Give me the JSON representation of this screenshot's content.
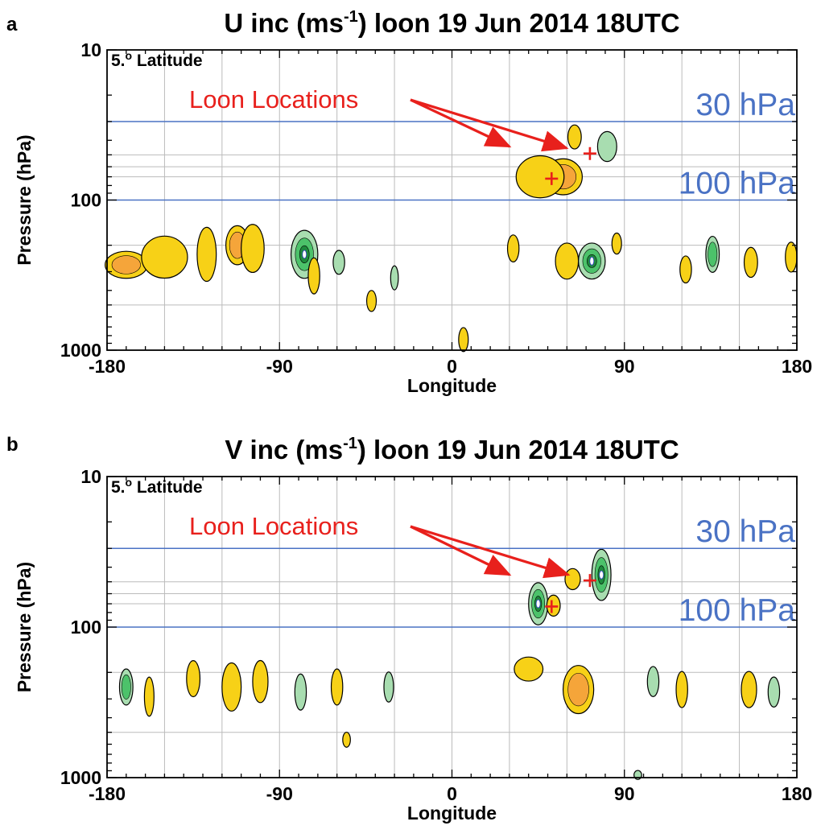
{
  "colors": {
    "ref_line": "#4a72c4",
    "annotation": "#e8201c",
    "positive_fill": "#f7d117",
    "positive_core": "#f5a53a",
    "negative_fill": "#a8ddb0",
    "negative_mid": "#4cc26a",
    "negative_core": "#1e8a3c",
    "negative_peak": "#2d3fc0",
    "grid": "#bbbbbb"
  },
  "chart_data": [
    {
      "panel_label": "a",
      "type": "contour",
      "title_main": "U inc (ms",
      "title_sup": "-1",
      "title_rest": ") loon  19 Jun 2014 18UTC",
      "xlabel": "Longitude",
      "ylabel": "Pressure (hPa)",
      "xlim": [
        -180,
        180
      ],
      "ylim": [
        1000,
        10
      ],
      "yscale": "log",
      "x_ticks": [
        "-180",
        "-90",
        "0",
        "90",
        "180"
      ],
      "x_tick_values": [
        -180,
        -90,
        0,
        90,
        180
      ],
      "y_ticks": [
        "10",
        "100",
        "1000"
      ],
      "y_tick_values": [
        10,
        100,
        1000
      ],
      "latitude_label": "5.",
      "latitude_sup": "o",
      "latitude_rest": " Latitude",
      "reference_lines": [
        {
          "label": "30 hPa",
          "pressure": 30
        },
        {
          "label": "100 hPa",
          "pressure": 100
        }
      ],
      "annotation": {
        "text": "Loon Locations"
      },
      "loon_locations": [
        {
          "lon": 52,
          "p": 72
        },
        {
          "lon": 72,
          "p": 49
        }
      ],
      "blobs": [
        {
          "lon": 46,
          "p": 72,
          "sign": -1,
          "level": 3,
          "w": 12,
          "h": 0.12
        },
        {
          "lon": 58,
          "p": 70,
          "sign": 1,
          "level": 2,
          "w": 20,
          "h": 0.12
        },
        {
          "lon": 46,
          "p": 70,
          "sign": 1,
          "level": 1,
          "w": 25,
          "h": 0.14
        },
        {
          "lon": 64,
          "p": 38,
          "sign": 1,
          "level": 1,
          "w": 7,
          "h": 0.08
        },
        {
          "lon": 81,
          "p": 44,
          "sign": -1,
          "level": 1,
          "w": 10,
          "h": 0.1
        },
        {
          "lon": -170,
          "p": 270,
          "sign": 1,
          "level": 2,
          "w": 22,
          "h": 0.09
        },
        {
          "lon": -150,
          "p": 240,
          "sign": 1,
          "level": 1,
          "w": 24,
          "h": 0.14
        },
        {
          "lon": -128,
          "p": 230,
          "sign": 1,
          "level": 1,
          "w": 10,
          "h": 0.18
        },
        {
          "lon": -112,
          "p": 200,
          "sign": 1,
          "level": 2,
          "w": 12,
          "h": 0.13
        },
        {
          "lon": -104,
          "p": 210,
          "sign": 1,
          "level": 1,
          "w": 12,
          "h": 0.16
        },
        {
          "lon": -77,
          "p": 230,
          "sign": -1,
          "level": 3,
          "w": 14,
          "h": 0.16
        },
        {
          "lon": -72,
          "p": 320,
          "sign": 1,
          "level": 1,
          "w": 6,
          "h": 0.12
        },
        {
          "lon": -59,
          "p": 260,
          "sign": -1,
          "level": 1,
          "w": 6,
          "h": 0.08
        },
        {
          "lon": -42,
          "p": 470,
          "sign": 1,
          "level": 1,
          "w": 5,
          "h": 0.07
        },
        {
          "lon": -30,
          "p": 330,
          "sign": -1,
          "level": 1,
          "w": 4,
          "h": 0.08
        },
        {
          "lon": 6,
          "p": 850,
          "sign": 1,
          "level": 1,
          "w": 5,
          "h": 0.08
        },
        {
          "lon": 32,
          "p": 210,
          "sign": 1,
          "level": 1,
          "w": 6,
          "h": 0.09
        },
        {
          "lon": 60,
          "p": 255,
          "sign": 1,
          "level": 1,
          "w": 12,
          "h": 0.12
        },
        {
          "lon": 73,
          "p": 255,
          "sign": -1,
          "level": 3,
          "w": 14,
          "h": 0.12
        },
        {
          "lon": 86,
          "p": 195,
          "sign": 1,
          "level": 1,
          "w": 5,
          "h": 0.07
        },
        {
          "lon": 122,
          "p": 290,
          "sign": 1,
          "level": 1,
          "w": 6,
          "h": 0.09
        },
        {
          "lon": 136,
          "p": 230,
          "sign": -1,
          "level": 2,
          "w": 7,
          "h": 0.12
        },
        {
          "lon": 156,
          "p": 260,
          "sign": 1,
          "level": 1,
          "w": 7,
          "h": 0.1
        },
        {
          "lon": 177,
          "p": 240,
          "sign": 1,
          "level": 1,
          "w": 6,
          "h": 0.1
        }
      ]
    },
    {
      "panel_label": "b",
      "type": "contour",
      "title_main": "V inc (ms",
      "title_sup": "-1",
      "title_rest": ") loon  19 Jun 2014 18UTC",
      "xlabel": "Longitude",
      "ylabel": "Pressure (hPa)",
      "xlim": [
        -180,
        180
      ],
      "ylim": [
        1000,
        10
      ],
      "yscale": "log",
      "x_ticks": [
        "-180",
        "-90",
        "0",
        "90",
        "180"
      ],
      "x_tick_values": [
        -180,
        -90,
        0,
        90,
        180
      ],
      "y_ticks": [
        "10",
        "100",
        "1000"
      ],
      "y_tick_values": [
        10,
        100,
        1000
      ],
      "latitude_label": "5.",
      "latitude_sup": "o",
      "latitude_rest": " Latitude",
      "reference_lines": [
        {
          "label": "30 hPa",
          "pressure": 30
        },
        {
          "label": "100 hPa",
          "pressure": 100
        }
      ],
      "annotation": {
        "text": "Loon Locations"
      },
      "loon_locations": [
        {
          "lon": 52,
          "p": 73
        },
        {
          "lon": 72,
          "p": 49
        }
      ],
      "blobs": [
        {
          "lon": 45,
          "p": 70,
          "sign": -1,
          "level": 3,
          "w": 10,
          "h": 0.14
        },
        {
          "lon": 53,
          "p": 72,
          "sign": 1,
          "level": 1,
          "w": 7,
          "h": 0.07
        },
        {
          "lon": 63,
          "p": 48,
          "sign": 1,
          "level": 1,
          "w": 8,
          "h": 0.07
        },
        {
          "lon": 78,
          "p": 45,
          "sign": -1,
          "level": 3,
          "w": 10,
          "h": 0.17
        },
        {
          "lon": -170,
          "p": 250,
          "sign": -1,
          "level": 2,
          "w": 7,
          "h": 0.12
        },
        {
          "lon": -158,
          "p": 290,
          "sign": 1,
          "level": 1,
          "w": 5,
          "h": 0.13
        },
        {
          "lon": -135,
          "p": 220,
          "sign": 1,
          "level": 1,
          "w": 7,
          "h": 0.12
        },
        {
          "lon": -115,
          "p": 250,
          "sign": 1,
          "level": 1,
          "w": 10,
          "h": 0.16
        },
        {
          "lon": -100,
          "p": 230,
          "sign": 1,
          "level": 1,
          "w": 8,
          "h": 0.14
        },
        {
          "lon": -79,
          "p": 270,
          "sign": -1,
          "level": 1,
          "w": 6,
          "h": 0.12
        },
        {
          "lon": -60,
          "p": 250,
          "sign": 1,
          "level": 1,
          "w": 6,
          "h": 0.12
        },
        {
          "lon": -33,
          "p": 250,
          "sign": -1,
          "level": 1,
          "w": 5,
          "h": 0.1
        },
        {
          "lon": 40,
          "p": 190,
          "sign": 1,
          "level": 1,
          "w": 15,
          "h": 0.08
        },
        {
          "lon": 66,
          "p": 260,
          "sign": 1,
          "level": 2,
          "w": 16,
          "h": 0.16
        },
        {
          "lon": 105,
          "p": 230,
          "sign": -1,
          "level": 1,
          "w": 6,
          "h": 0.1
        },
        {
          "lon": 120,
          "p": 260,
          "sign": 1,
          "level": 1,
          "w": 6,
          "h": 0.12
        },
        {
          "lon": 155,
          "p": 260,
          "sign": 1,
          "level": 1,
          "w": 8,
          "h": 0.12
        },
        {
          "lon": 168,
          "p": 270,
          "sign": -1,
          "level": 1,
          "w": 6,
          "h": 0.1
        },
        {
          "lon": -55,
          "p": 560,
          "sign": 1,
          "level": 1,
          "w": 4,
          "h": 0.05
        },
        {
          "lon": 97,
          "p": 960,
          "sign": -1,
          "level": 1,
          "w": 4,
          "h": 0.03
        }
      ]
    }
  ]
}
